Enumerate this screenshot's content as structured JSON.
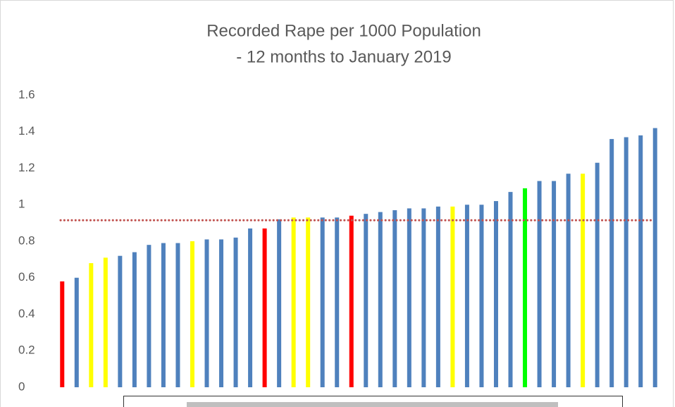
{
  "chart_data": {
    "type": "bar",
    "title": "Recorded Rape per 1000 Population",
    "subtitle": "- 12 months to January 2019",
    "categories": [
      null,
      null,
      null,
      null,
      null,
      null,
      null,
      null,
      null,
      null,
      null,
      null,
      null,
      null,
      null,
      null,
      null,
      null,
      null,
      null,
      null,
      null,
      null,
      null,
      null,
      null,
      null,
      null,
      null,
      null,
      null,
      null,
      null,
      null,
      null,
      null,
      null,
      null,
      null,
      null,
      null,
      null
    ],
    "values": [
      0.58,
      0.6,
      0.68,
      0.71,
      0.72,
      0.74,
      0.78,
      0.79,
      0.79,
      0.8,
      0.81,
      0.81,
      0.82,
      0.87,
      0.87,
      0.92,
      0.93,
      0.93,
      0.93,
      0.93,
      0.94,
      0.95,
      0.96,
      0.97,
      0.98,
      0.98,
      0.99,
      0.99,
      1.0,
      1.0,
      1.02,
      1.07,
      1.09,
      1.13,
      1.13,
      1.17,
      1.17,
      1.23,
      1.36,
      1.37,
      1.38,
      1.42
    ],
    "colors": [
      "#ff0000",
      "#4f81bd",
      "#ffff00",
      "#ffff00",
      "#4f81bd",
      "#4f81bd",
      "#4f81bd",
      "#4f81bd",
      "#4f81bd",
      "#ffff00",
      "#4f81bd",
      "#4f81bd",
      "#4f81bd",
      "#4f81bd",
      "#ff0000",
      "#4f81bd",
      "#ffff00",
      "#ffff00",
      "#4f81bd",
      "#4f81bd",
      "#ff0000",
      "#4f81bd",
      "#4f81bd",
      "#4f81bd",
      "#4f81bd",
      "#4f81bd",
      "#4f81bd",
      "#ffff00",
      "#4f81bd",
      "#4f81bd",
      "#4f81bd",
      "#4f81bd",
      "#00ff00",
      "#4f81bd",
      "#4f81bd",
      "#4f81bd",
      "#ffff00",
      "#4f81bd",
      "#4f81bd",
      "#4f81bd",
      "#4f81bd",
      "#4f81bd"
    ],
    "reference_line": 0.915,
    "reference_color": "#c0504d",
    "ylim": [
      0,
      1.6
    ],
    "yticks": [
      0,
      0.2,
      0.4,
      0.6,
      0.8,
      1,
      1.2,
      1.4,
      1.6
    ],
    "grid": false
  }
}
